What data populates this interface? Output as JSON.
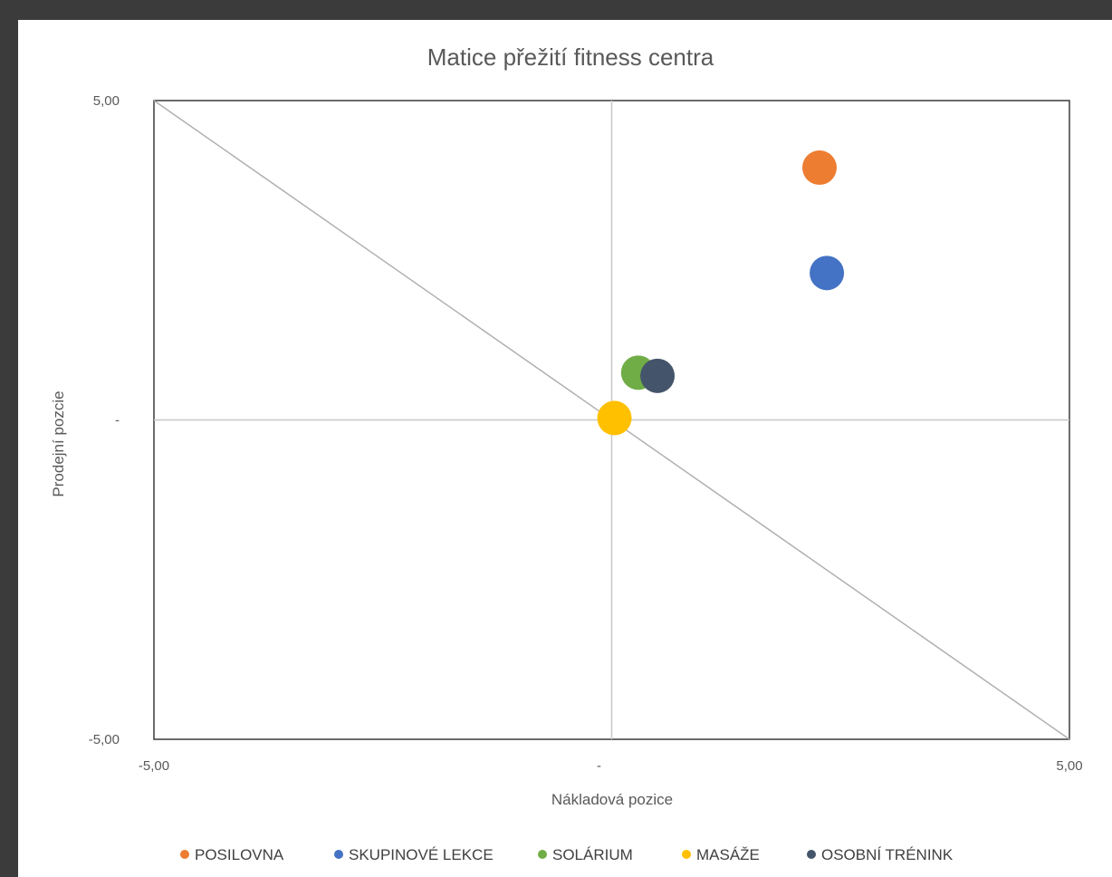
{
  "chart_data": {
    "type": "scatter",
    "title": "Matice přežití fitness centra",
    "xlabel": "Nákladová pozice",
    "ylabel": "Prodejní pozcie",
    "xlim": [
      -5,
      5
    ],
    "ylim": [
      -5,
      5
    ],
    "x_ticks": [
      "-5,00",
      "-",
      "5,00"
    ],
    "y_ticks": [
      "5,00",
      "-",
      "-5,00"
    ],
    "diagonal": {
      "from": [
        -5,
        5
      ],
      "to": [
        5,
        -5
      ]
    },
    "series": [
      {
        "name": "POSILOVNA",
        "color": "#ED7D31",
        "x": 2.27,
        "y": 3.95
      },
      {
        "name": "SKUPINOVÉ LEKCE",
        "color": "#4472C4",
        "x": 2.35,
        "y": 2.3
      },
      {
        "name": "SOLÁRIUM",
        "color": "#70AD47",
        "x": 0.29,
        "y": 0.74
      },
      {
        "name": "MASÁŽE",
        "color": "#FFC000",
        "x": 0.03,
        "y": 0.03
      },
      {
        "name": "OSOBNÍ TRÉNINK",
        "color": "#44546A",
        "x": 0.5,
        "y": 0.69
      }
    ],
    "legend_position": "bottom"
  }
}
